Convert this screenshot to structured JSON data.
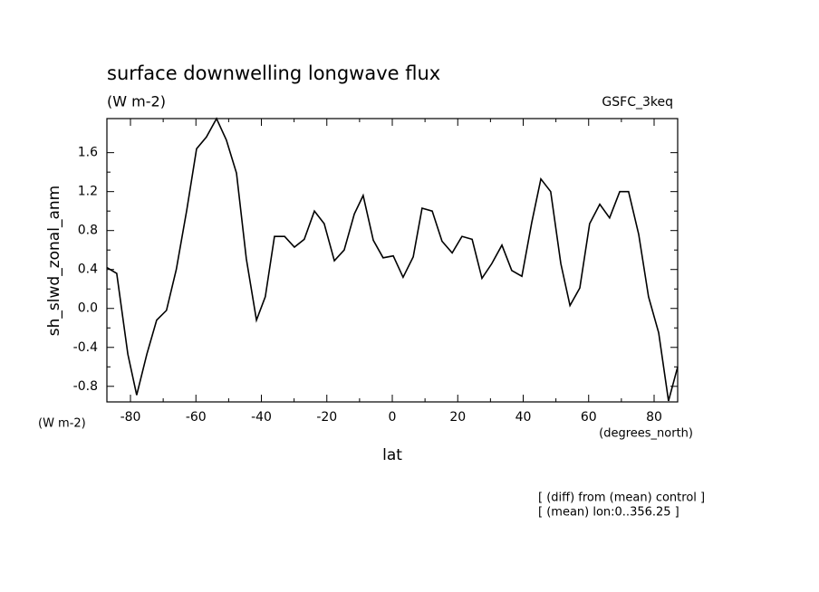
{
  "chart_data": {
    "type": "line",
    "title": "surface downwelling longwave flux",
    "subtitle": "(W m-2)",
    "dataset_label": "GSFC_3keq",
    "ylabel": "sh_slwd_zonal_anm",
    "y_units": "(W m-2)",
    "xlabel": "lat",
    "x_units": "(degrees_north)",
    "notes": [
      "[ (diff) from (mean) control ]",
      "[ (mean) lon:0..356.25 ]"
    ],
    "x": [
      -87.2,
      -84.2,
      -80.8,
      -78.1,
      -75,
      -72,
      -69,
      -66,
      -62.8,
      -59.8,
      -56.8,
      -53.7,
      -50.7,
      -47.6,
      -44.6,
      -41.5,
      -38.8,
      -36,
      -32.9,
      -29.9,
      -26.9,
      -23.8,
      -20.8,
      -17.7,
      -14.7,
      -11.6,
      -8.9,
      -5.8,
      -2.8,
      0.3,
      3.3,
      6.4,
      9.1,
      12.2,
      15.2,
      18.3,
      21.3,
      24.4,
      27.4,
      30.4,
      33.5,
      36.5,
      39.6,
      42.6,
      45.4,
      48.4,
      51.5,
      54.3,
      57.3,
      60.3,
      63.4,
      66.4,
      69.5,
      72.2,
      75.3,
      78.3,
      81.4,
      84.4,
      87.2
    ],
    "series": [
      {
        "color": "#000000",
        "values": [
          0.42,
          0.36,
          -0.47,
          -0.89,
          -0.47,
          -0.12,
          -0.02,
          0.4,
          1.01,
          1.64,
          1.76,
          1.95,
          1.73,
          1.39,
          0.51,
          -0.12,
          0.12,
          0.74,
          0.74,
          0.63,
          0.71,
          1.0,
          0.87,
          0.49,
          0.6,
          0.97,
          1.16,
          0.7,
          0.52,
          0.54,
          0.32,
          0.53,
          1.03,
          1.0,
          0.69,
          0.57,
          0.74,
          0.71,
          0.31,
          0.46,
          0.65,
          0.39,
          0.33,
          0.88,
          1.33,
          1.2,
          0.46,
          0.03,
          0.21,
          0.87,
          1.07,
          0.93,
          1.2,
          1.2,
          0.76,
          0.12,
          -0.25,
          -0.95,
          -0.6
        ]
      }
    ],
    "xlim": [
      -87.2,
      87.2
    ],
    "ylim": [
      -0.96,
      1.95
    ],
    "xticks": [
      -80,
      -60,
      -40,
      -20,
      0,
      20,
      40,
      60,
      80
    ],
    "yticks": [
      -0.8,
      -0.4,
      {
        "value": 0,
        "label": "0.0"
      },
      0.4,
      0.8,
      1.2,
      1.6
    ],
    "grid": false
  }
}
